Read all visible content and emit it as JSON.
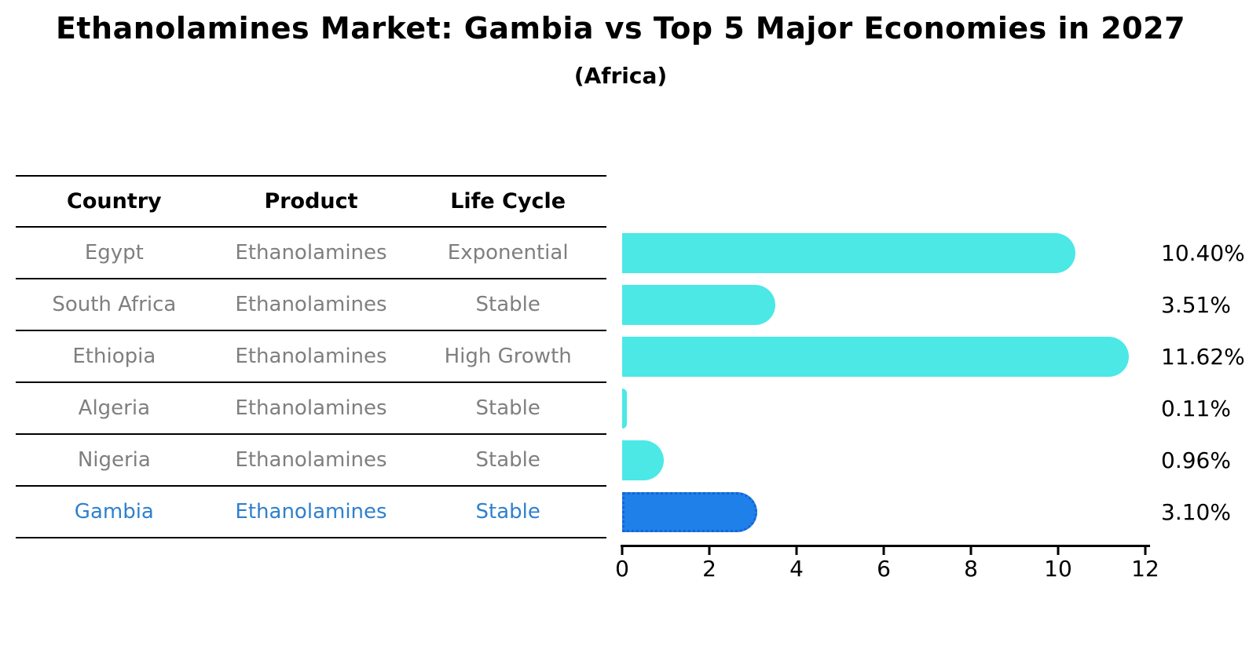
{
  "title": "Ethanolamines Market: Gambia vs Top 5 Major Economies in 2027",
  "subtitle": "(Africa)",
  "table": {
    "headers": [
      "Country",
      "Product",
      "Life Cycle"
    ],
    "rows": [
      {
        "country": "Egypt",
        "product": "Ethanolamines",
        "life_cycle": "Exponential",
        "highlight": false
      },
      {
        "country": "South Africa",
        "product": "Ethanolamines",
        "life_cycle": "Stable",
        "highlight": false
      },
      {
        "country": "Ethiopia",
        "product": "Ethanolamines",
        "life_cycle": "High Growth",
        "highlight": false
      },
      {
        "country": "Algeria",
        "product": "Ethanolamines",
        "life_cycle": "Stable",
        "highlight": false
      },
      {
        "country": "Nigeria",
        "product": "Ethanolamines",
        "life_cycle": "Stable",
        "highlight": false
      },
      {
        "country": "Gambia",
        "product": "Ethanolamines",
        "life_cycle": "Stable",
        "highlight": true
      }
    ]
  },
  "chart_data": {
    "type": "bar",
    "orientation": "horizontal",
    "title": "Ethanolamines Market: Gambia vs Top 5 Major Economies in 2027 (Africa)",
    "categories": [
      "Egypt",
      "South Africa",
      "Ethiopia",
      "Algeria",
      "Nigeria",
      "Gambia"
    ],
    "values": [
      10.4,
      3.51,
      11.62,
      0.11,
      0.96,
      3.1
    ],
    "value_labels": [
      "10.40%",
      "3.51%",
      "11.62%",
      "0.11%",
      "0.96%",
      "3.10%"
    ],
    "xlim": [
      0,
      12
    ],
    "xticks": [
      0,
      2,
      4,
      6,
      8,
      10,
      12
    ],
    "highlight_index": 5,
    "grid": false,
    "colors": {
      "bar_default": "#4be8e6",
      "bar_highlight": "#1e80e8",
      "bar_highlight_border": "#1663d6",
      "text_muted": "#7f7f7f",
      "text_highlight": "#2f80ce",
      "text_default": "#000000"
    }
  }
}
